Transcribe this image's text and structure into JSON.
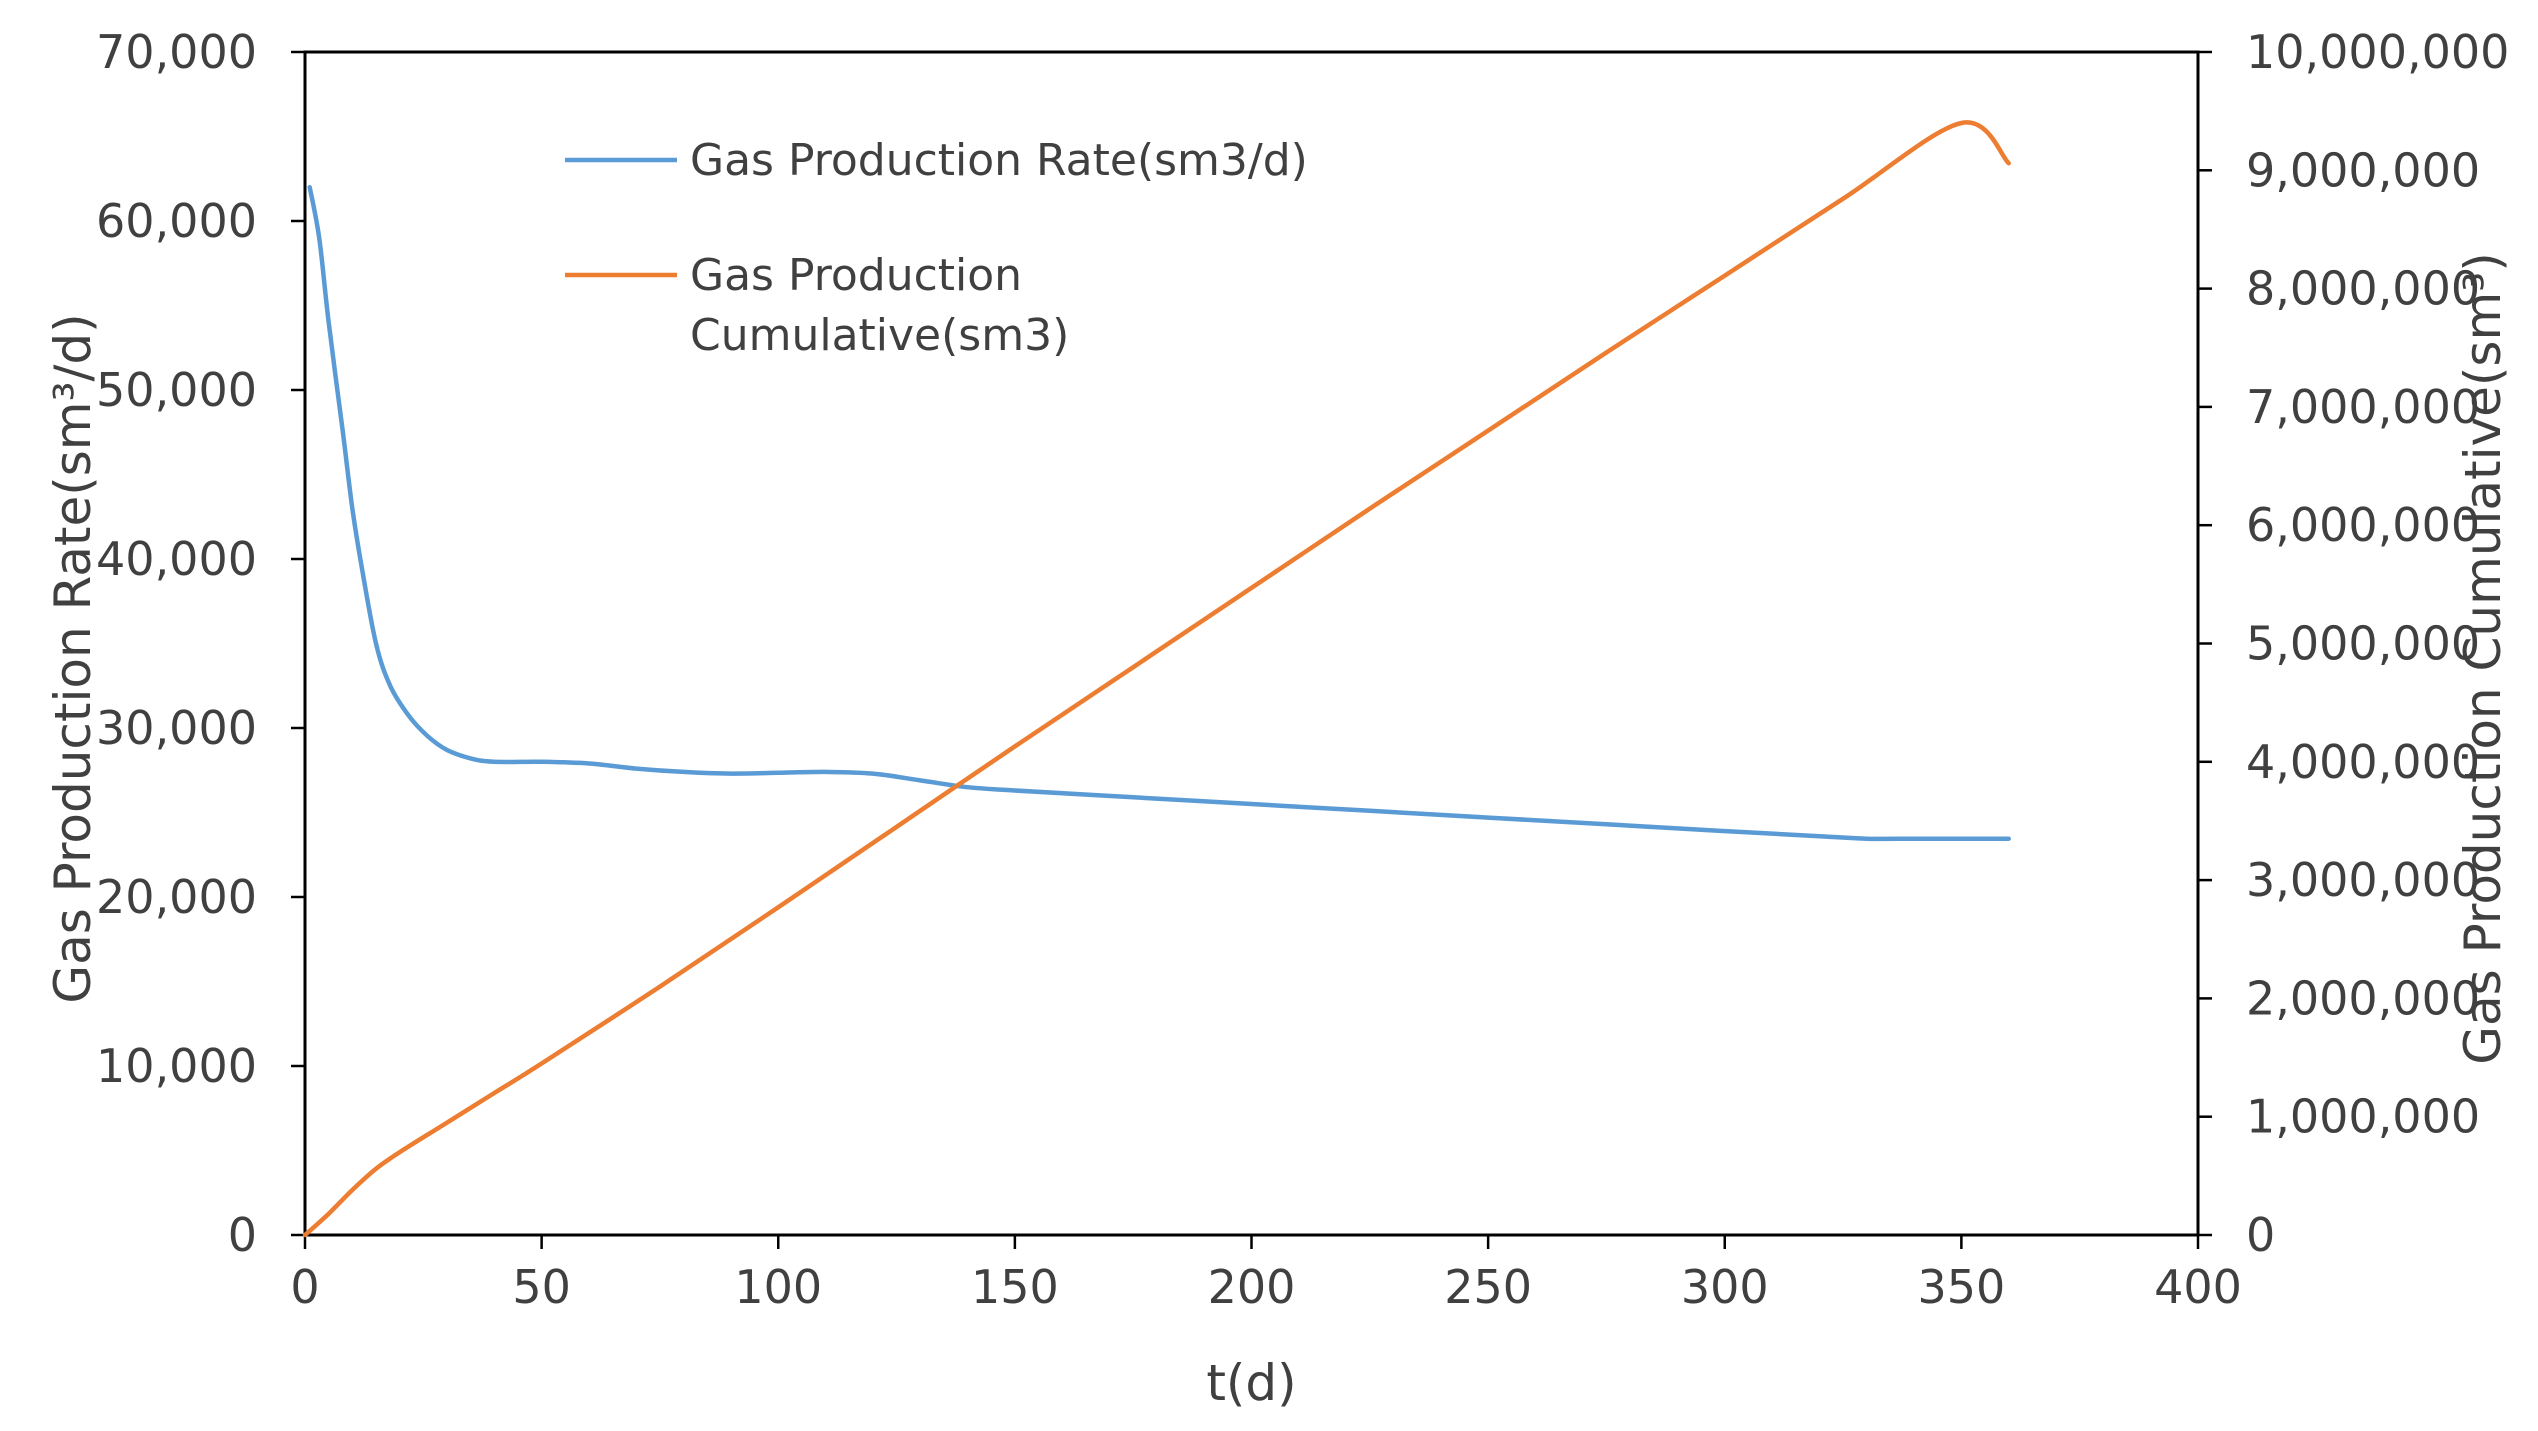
{
  "chart_data": {
    "type": "line",
    "title": "",
    "xlabel": "t(d)",
    "ylabel_left": "Gas Production Rate(sm³/d)",
    "ylabel_right": "Gas Production Cumulative(sm³)",
    "xlim": [
      0,
      400
    ],
    "ylim_left": [
      0,
      70000
    ],
    "ylim_right": [
      0,
      10000000
    ],
    "x_ticks": [
      "0",
      "50",
      "100",
      "150",
      "200",
      "250",
      "300",
      "350",
      "400"
    ],
    "y_left_ticks": [
      "0",
      "10,000",
      "20,000",
      "30,000",
      "40,000",
      "50,000",
      "60,000",
      "70,000"
    ],
    "y_right_ticks": [
      "0",
      "1,000,000",
      "2,000,000",
      "3,000,000",
      "4,000,000",
      "5,000,000",
      "6,000,000",
      "7,000,000",
      "8,000,000",
      "9,000,000",
      "10,000,000"
    ],
    "grid": false,
    "legend_position": "top-left",
    "series": [
      {
        "name": "Gas Production Rate(sm3/d)",
        "legend_lines": [
          "Gas Production Rate(sm3/d)"
        ],
        "axis": "left",
        "color": "#5B9BD5",
        "x": [
          1,
          3,
          5,
          8,
          10,
          12,
          15,
          18,
          22,
          26,
          30,
          35,
          40,
          50,
          60,
          70,
          80,
          90,
          100,
          110,
          120,
          130,
          140,
          150,
          175,
          200,
          225,
          250,
          275,
          300,
          320,
          330,
          340,
          350,
          360
        ],
        "values": [
          62000,
          59000,
          54000,
          47500,
          43000,
          39500,
          35000,
          32500,
          30700,
          29500,
          28700,
          28200,
          28000,
          28000,
          27900,
          27600,
          27400,
          27300,
          27350,
          27400,
          27300,
          26900,
          26500,
          26300,
          25900,
          25500,
          25100,
          24700,
          24300,
          23900,
          23600,
          23450,
          23450,
          23450,
          23450
        ]
      },
      {
        "name": "Gas Production Cumulative(sm3)",
        "legend_lines": [
          "Gas Production",
          "Cumulative(sm3)"
        ],
        "axis": "right",
        "color": "#ED7D31",
        "x": [
          0,
          5,
          10,
          15,
          20,
          30,
          40,
          50,
          75,
          100,
          125,
          150,
          175,
          200,
          225,
          250,
          275,
          300,
          325,
          350,
          360
        ],
        "values": [
          0,
          180000,
          380000,
          560000,
          700000,
          950000,
          1200000,
          1450000,
          2100000,
          2770000,
          3450000,
          4130000,
          4800000,
          5470000,
          6140000,
          6800000,
          7460000,
          8110000,
          8760000,
          9400000,
          9060000
        ]
      }
    ]
  }
}
